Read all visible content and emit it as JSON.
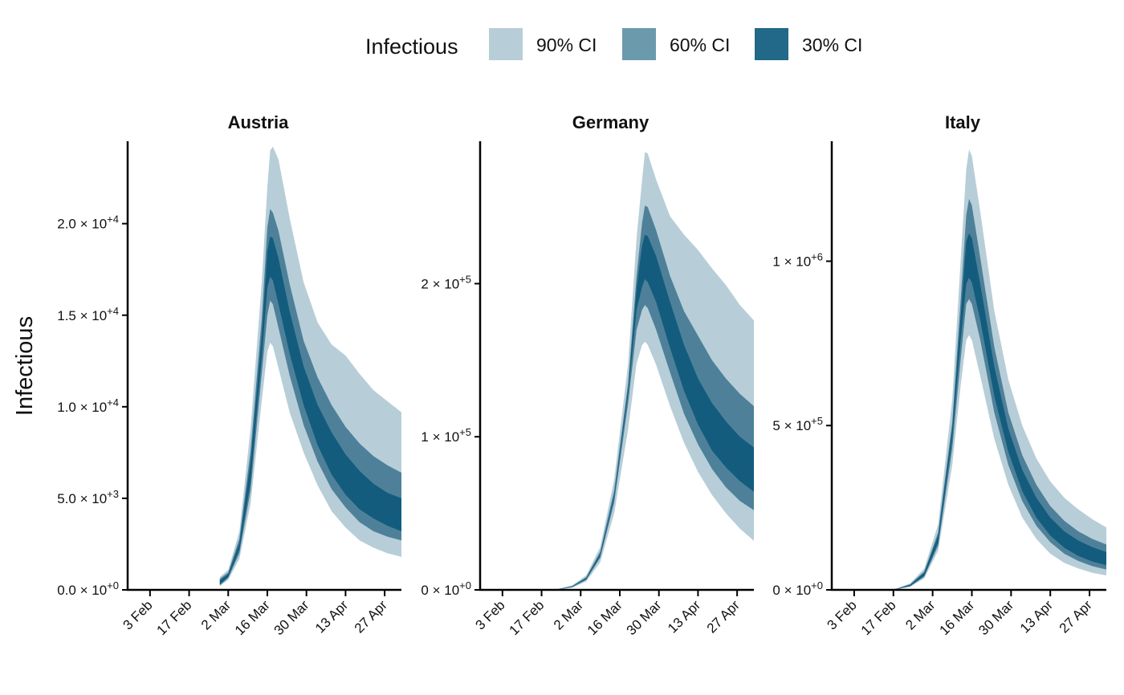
{
  "legend": {
    "title": "Infectious",
    "items": [
      {
        "label": "90% CI",
        "color": "#b7ced8"
      },
      {
        "label": "60% CI",
        "color": "#6c9aad"
      },
      {
        "label": "30% CI",
        "color": "#226888"
      }
    ]
  },
  "ylabel": "Infectious",
  "colors": {
    "band90": "#b7ced8",
    "band60": "#4e8199",
    "band30": "#135c7d",
    "axis": "#000000"
  },
  "chart_data": [
    {
      "type": "area",
      "title": "Austria",
      "x_tick_labels": [
        "3 Feb",
        "17 Feb",
        "2 Mar",
        "16 Mar",
        "30 Mar",
        "13 Apr",
        "27 Apr"
      ],
      "x_tick_days": [
        0,
        14,
        28,
        42,
        56,
        70,
        84
      ],
      "xlim": [
        -8,
        90
      ],
      "ylim": [
        0,
        24500
      ],
      "y_ticks": [
        {
          "value": 0,
          "mant": "0.0",
          "exp": "+0"
        },
        {
          "value": 5000,
          "mant": "5.0",
          "exp": "+3"
        },
        {
          "value": 10000,
          "mant": "1.0",
          "exp": "+4"
        },
        {
          "value": 15000,
          "mant": "1.5",
          "exp": "+4"
        },
        {
          "value": 20000,
          "mant": "2.0",
          "exp": "+4"
        }
      ],
      "series": [
        {
          "name": "90% CI",
          "x": [
            25,
            28,
            32,
            36,
            40,
            42,
            43,
            44,
            46,
            50,
            55,
            60,
            65,
            70,
            75,
            80,
            85,
            90
          ],
          "lower": [
            200,
            550,
            1700,
            4700,
            10300,
            13000,
            13500,
            13300,
            12100,
            9700,
            7500,
            5700,
            4300,
            3400,
            2700,
            2300,
            2000,
            1800
          ],
          "upper": [
            700,
            1100,
            3200,
            8800,
            16800,
            22000,
            24000,
            24200,
            23500,
            20300,
            16800,
            14600,
            13400,
            12800,
            11800,
            10900,
            10300,
            9700
          ]
        },
        {
          "name": "60% CI",
          "x": [
            25,
            28,
            32,
            36,
            40,
            42,
            43,
            44,
            46,
            50,
            55,
            60,
            65,
            70,
            75,
            80,
            85,
            90
          ],
          "lower": [
            250,
            650,
            2000,
            5400,
            11800,
            15000,
            15800,
            15600,
            14300,
            11700,
            9000,
            7000,
            5500,
            4500,
            3700,
            3200,
            2900,
            2700
          ],
          "upper": [
            600,
            950,
            2800,
            7600,
            14800,
            19800,
            20800,
            20600,
            19600,
            16700,
            13600,
            11600,
            10100,
            8900,
            8000,
            7300,
            6800,
            6400
          ]
        },
        {
          "name": "30% CI",
          "x": [
            25,
            28,
            32,
            36,
            40,
            42,
            43,
            44,
            46,
            50,
            55,
            60,
            65,
            70,
            75,
            80,
            85,
            90
          ],
          "lower": [
            300,
            720,
            2200,
            5900,
            12700,
            16500,
            17100,
            16900,
            15600,
            12900,
            10100,
            7900,
            6300,
            5200,
            4400,
            3900,
            3500,
            3200
          ],
          "upper": [
            520,
            860,
            2550,
            7000,
            13900,
            18500,
            19300,
            19200,
            18100,
            15200,
            12200,
            10100,
            8600,
            7400,
            6500,
            5800,
            5300,
            5000
          ]
        }
      ]
    },
    {
      "type": "area",
      "title": "Germany",
      "x_tick_labels": [
        "3 Feb",
        "17 Feb",
        "2 Mar",
        "16 Mar",
        "30 Mar",
        "13 Apr",
        "27 Apr"
      ],
      "x_tick_days": [
        0,
        14,
        28,
        42,
        56,
        70,
        84
      ],
      "xlim": [
        -8,
        90
      ],
      "ylim": [
        0,
        293000
      ],
      "y_ticks": [
        {
          "value": 0,
          "mant": "0",
          "exp": "+0"
        },
        {
          "value": 100000,
          "mant": "1",
          "exp": "+5"
        },
        {
          "value": 200000,
          "mant": "2",
          "exp": "+5"
        }
      ],
      "series": [
        {
          "name": "90% CI",
          "x": [
            20,
            25,
            30,
            35,
            40,
            45,
            48,
            50,
            51,
            52,
            55,
            60,
            65,
            70,
            75,
            80,
            85,
            90
          ],
          "lower": [
            200,
            1400,
            5500,
            18000,
            50000,
            105000,
            148000,
            160000,
            162000,
            160000,
            147000,
            120000,
            96000,
            77000,
            62000,
            50000,
            40000,
            32000
          ],
          "upper": [
            600,
            3000,
            9500,
            28000,
            72000,
            148000,
            230000,
            268000,
            286000,
            285000,
            268000,
            244000,
            232000,
            222000,
            210000,
            199000,
            186000,
            176000
          ]
        },
        {
          "name": "60% CI",
          "x": [
            20,
            25,
            30,
            35,
            40,
            45,
            48,
            50,
            51,
            52,
            55,
            60,
            65,
            70,
            75,
            80,
            85,
            90
          ],
          "lower": [
            300,
            1800,
            6500,
            21000,
            57000,
            122000,
            170000,
            183000,
            186000,
            184000,
            170000,
            142000,
            115000,
            95000,
            79000,
            67000,
            58000,
            52000
          ],
          "upper": [
            500,
            2500,
            8300,
            25000,
            65000,
            135000,
            205000,
            240000,
            251000,
            250000,
            235000,
            205000,
            182000,
            166000,
            150000,
            138000,
            128000,
            120000
          ]
        },
        {
          "name": "30% CI",
          "x": [
            20,
            25,
            30,
            35,
            40,
            45,
            48,
            50,
            51,
            52,
            55,
            60,
            65,
            70,
            75,
            80,
            85,
            90
          ],
          "lower": [
            330,
            1950,
            7000,
            22000,
            60000,
            128000,
            183000,
            198000,
            203000,
            201000,
            188000,
            158000,
            130000,
            108000,
            91000,
            80000,
            71000,
            64000
          ],
          "upper": [
            450,
            2300,
            7800,
            23500,
            62000,
            132000,
            197000,
            225000,
            232000,
            231000,
            218000,
            188000,
            160000,
            138000,
            122000,
            110000,
            100000,
            93000
          ]
        }
      ]
    },
    {
      "type": "area",
      "title": "Italy",
      "x_tick_labels": [
        "3 Feb",
        "17 Feb",
        "2 Mar",
        "16 Mar",
        "30 Mar",
        "13 Apr",
        "27 Apr"
      ],
      "x_tick_days": [
        0,
        14,
        28,
        42,
        56,
        70,
        84
      ],
      "xlim": [
        -8,
        90
      ],
      "ylim": [
        0,
        1365000
      ],
      "y_ticks": [
        {
          "value": 0,
          "mant": "0",
          "exp": "+0"
        },
        {
          "value": 500000,
          "mant": "5",
          "exp": "+5"
        },
        {
          "value": 1000000,
          "mant": "1",
          "exp": "+6"
        }
      ],
      "series": [
        {
          "name": "90% CI",
          "x": [
            12,
            15,
            20,
            25,
            30,
            35,
            38,
            40,
            41,
            42,
            45,
            50,
            55,
            60,
            65,
            70,
            75,
            80,
            85,
            90
          ],
          "lower": [
            200,
            1500,
            9000,
            35000,
            120000,
            380000,
            620000,
            760000,
            775000,
            760000,
            650000,
            460000,
            320000,
            220000,
            155000,
            110000,
            82000,
            65000,
            52000,
            44000
          ],
          "upper": [
            1000,
            4000,
            20000,
            65000,
            200000,
            580000,
            1000000,
            1280000,
            1340000,
            1320000,
            1150000,
            850000,
            640000,
            500000,
            400000,
            330000,
            280000,
            245000,
            215000,
            190000
          ]
        },
        {
          "name": "60% CI",
          "x": [
            12,
            15,
            20,
            25,
            30,
            35,
            38,
            40,
            41,
            42,
            45,
            50,
            55,
            60,
            65,
            70,
            75,
            80,
            85,
            90
          ],
          "lower": [
            300,
            2000,
            11000,
            40000,
            135000,
            430000,
            700000,
            870000,
            885000,
            870000,
            760000,
            540000,
            380000,
            270000,
            195000,
            145000,
            110000,
            88000,
            72000,
            62000
          ],
          "upper": [
            800,
            3200,
            17000,
            56000,
            175000,
            510000,
            880000,
            1140000,
            1190000,
            1170000,
            1010000,
            740000,
            540000,
            410000,
            320000,
            255000,
            210000,
            178000,
            155000,
            138000
          ]
        },
        {
          "name": "30% CI",
          "x": [
            12,
            15,
            20,
            25,
            30,
            35,
            38,
            40,
            41,
            42,
            45,
            50,
            55,
            60,
            65,
            70,
            75,
            80,
            85,
            90
          ],
          "lower": [
            350,
            2200,
            12000,
            43000,
            145000,
            460000,
            760000,
            930000,
            950000,
            935000,
            820000,
            590000,
            420000,
            300000,
            220000,
            165000,
            128000,
            103000,
            86000,
            75000
          ],
          "upper": [
            700,
            2800,
            15500,
            52000,
            165000,
            490000,
            830000,
            1060000,
            1085000,
            1070000,
            930000,
            680000,
            490000,
            365000,
            280000,
            220000,
            178000,
            150000,
            130000,
            115000
          ]
        }
      ]
    }
  ]
}
